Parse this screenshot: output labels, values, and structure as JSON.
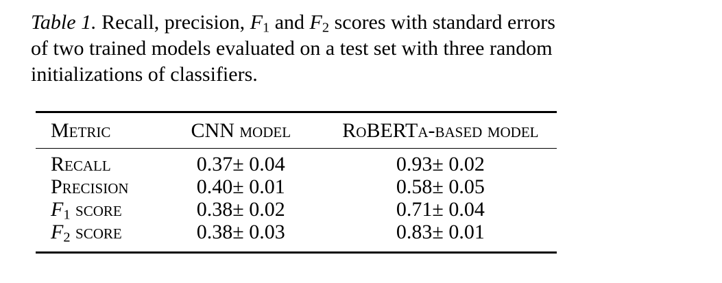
{
  "page": {
    "background_color": "#ffffff",
    "text_color": "#000000"
  },
  "caption": {
    "label": "Table 1.",
    "line1_pre": " Recall, precision, ",
    "f1": {
      "letter": "F",
      "sub": "1"
    },
    "line1_mid": " and ",
    "f2": {
      "letter": "F",
      "sub": "2"
    },
    "line1_post": " scores with standard errors",
    "line2": "of two trained models evaluated on a test set with three random",
    "line3": "initializations of classifiers."
  },
  "table": {
    "headers": [
      "Metric",
      "CNN model",
      "RoBERTa-based model"
    ],
    "rows": [
      {
        "metric": {
          "letter": "",
          "sub": "",
          "label": "Recall"
        },
        "cnn": "0.37± 0.04",
        "roberta": "0.93± 0.02"
      },
      {
        "metric": {
          "letter": "",
          "sub": "",
          "label": "Precision"
        },
        "cnn": "0.40± 0.01",
        "roberta": "0.58± 0.05"
      },
      {
        "metric": {
          "letter": "F",
          "sub": "1",
          "label": " score"
        },
        "cnn": "0.38± 0.02",
        "roberta": "0.71± 0.04"
      },
      {
        "metric": {
          "letter": "F",
          "sub": "2",
          "label": " score"
        },
        "cnn": "0.38± 0.03",
        "roberta": "0.83± 0.01"
      }
    ]
  }
}
